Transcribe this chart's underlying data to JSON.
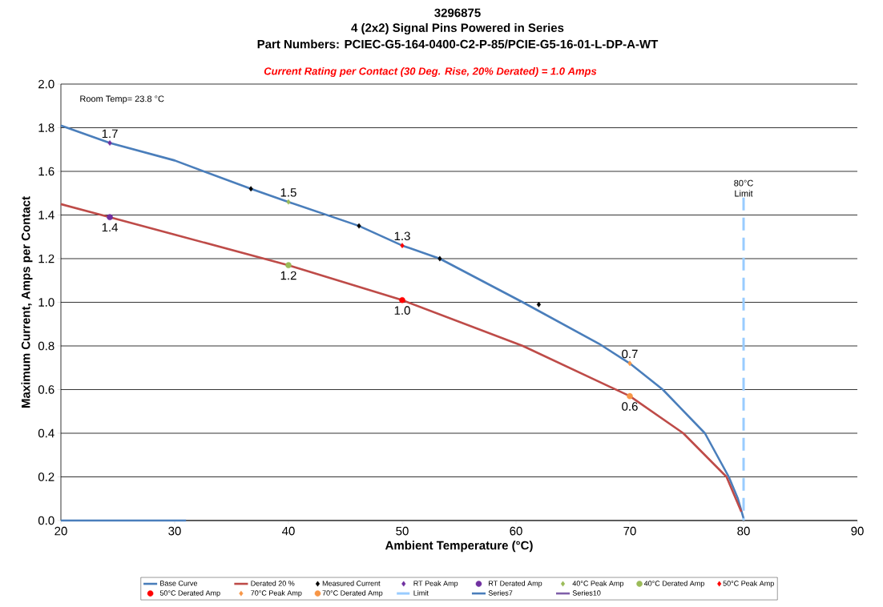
{
  "chart_data": {
    "type": "line",
    "title": "3296875",
    "subtitle": "4 (2x2) Signal Pins Powered in Series",
    "annotations": [
      "Part Numbers: PCIEC-G5-164-0400-C2-P-85/PCIE-G5-16-01-L-DP-A-WT",
      "Current Rating per Contact (30 Deg. Rise, 20% Derated)  = 1.0 Amps",
      "Room Temp= 23.8 °C",
      {
        "text": "80°C Limit",
        "x": 80,
        "y": 1.48
      }
    ],
    "xlabel": "Ambient Temperature (°C)",
    "ylabel": "Maximum Current, Amps per Contact",
    "xlim": [
      20,
      90
    ],
    "xticks": [
      20,
      30,
      40,
      50,
      60,
      70,
      80,
      90
    ],
    "ylim": [
      0,
      2.0
    ],
    "yticks": [
      {
        "value": 0,
        "label": "0.0"
      },
      {
        "value": 0.2,
        "label": "0.2"
      },
      {
        "value": 0.4,
        "label": "0.4"
      },
      {
        "value": 0.6,
        "label": "0.6"
      },
      {
        "value": 0.8,
        "label": "0.8"
      },
      {
        "value": 1.0,
        "label": "1.0"
      },
      {
        "value": 1.2,
        "label": "1.2"
      },
      {
        "value": 1.4,
        "label": "1.4"
      },
      {
        "value": 1.6,
        "label": "1.6"
      },
      {
        "value": 1.8,
        "label": "1.8"
      },
      {
        "value": 2.0,
        "label": "2.0"
      }
    ],
    "grid": "y",
    "legend": "bottom",
    "series": [
      {
        "name": "Base Curve",
        "color": "#4a7ebb",
        "marker": "none",
        "x": [
          20,
          24.3,
          30,
          36.7,
          40,
          46.2,
          50,
          53.3,
          60.6,
          67.3,
          70,
          72.9,
          76.6,
          78.7,
          79.5,
          80
        ],
        "values": [
          1.81,
          1.73,
          1.65,
          1.52,
          1.46,
          1.35,
          1.26,
          1.2,
          1.0,
          0.81,
          0.72,
          0.6,
          0.4,
          0.2,
          0.1,
          0.01
        ]
      },
      {
        "name": "Derated 20 %",
        "color": "#be4b48",
        "marker": "none",
        "x": [
          20,
          24.3,
          30,
          40,
          50,
          60.6,
          70,
          74.7,
          78.5,
          79.8
        ],
        "values": [
          1.45,
          1.39,
          1.31,
          1.17,
          1.01,
          0.8,
          0.57,
          0.4,
          0.2,
          0.04
        ]
      },
      {
        "name": "Measured Current",
        "color": "#000000",
        "type": "scatter",
        "marker": "diamond",
        "x": [
          36.7,
          46.2,
          53.3,
          62.0
        ],
        "values": [
          1.52,
          1.35,
          1.2,
          0.99
        ]
      },
      {
        "name": "RT Peak Amp",
        "color": "#7030a0",
        "type": "scatter",
        "marker": "diamond",
        "x": [
          24.3
        ],
        "values": [
          1.73
        ],
        "value_labels": [
          "1.7"
        ]
      },
      {
        "name": "RT Derated Amp",
        "color": "#7030a0",
        "type": "scatter",
        "marker": "circle",
        "x": [
          24.3
        ],
        "values": [
          1.39
        ],
        "value_labels": [
          "1.4"
        ]
      },
      {
        "name": "40°C Peak Amp",
        "color": "#9bbb59",
        "type": "scatter",
        "marker": "diamond",
        "x": [
          40
        ],
        "values": [
          1.46
        ],
        "value_labels": [
          "1.5"
        ]
      },
      {
        "name": "40°C Derated Amp",
        "color": "#9bbb59",
        "type": "scatter",
        "marker": "circle",
        "x": [
          40
        ],
        "values": [
          1.17
        ],
        "value_labels": [
          "1.2"
        ]
      },
      {
        "name": "50°C Peak Amp",
        "color": "#ff0000",
        "type": "scatter",
        "marker": "diamond",
        "x": [
          50
        ],
        "values": [
          1.26
        ],
        "value_labels": [
          "1.3"
        ]
      },
      {
        "name": "50°C Derated Amp",
        "color": "#ff0000",
        "type": "scatter",
        "marker": "circle",
        "x": [
          50
        ],
        "values": [
          1.01
        ],
        "value_labels": [
          "1.0"
        ]
      },
      {
        "name": "70°C Peak Amp",
        "color": "#f79646",
        "type": "scatter",
        "marker": "diamond",
        "x": [
          70
        ],
        "values": [
          0.72
        ],
        "value_labels": [
          "0.7"
        ]
      },
      {
        "name": "70°C Derated Amp",
        "color": "#f79646",
        "type": "scatter",
        "marker": "circle",
        "x": [
          70
        ],
        "values": [
          0.57
        ],
        "value_labels": [
          "0.6"
        ]
      },
      {
        "name": "Limit",
        "color": "#99ccff",
        "marker": "none",
        "line_style": "dashed",
        "x": [
          80,
          80
        ],
        "values": [
          1.48,
          0
        ]
      },
      {
        "name": "Series7",
        "color": "#4a7ebb",
        "marker": "none",
        "x": [
          20,
          31
        ],
        "values": [
          0,
          0
        ]
      },
      {
        "name": "Series10",
        "color": "#7f5fa9",
        "marker": "none"
      }
    ]
  }
}
